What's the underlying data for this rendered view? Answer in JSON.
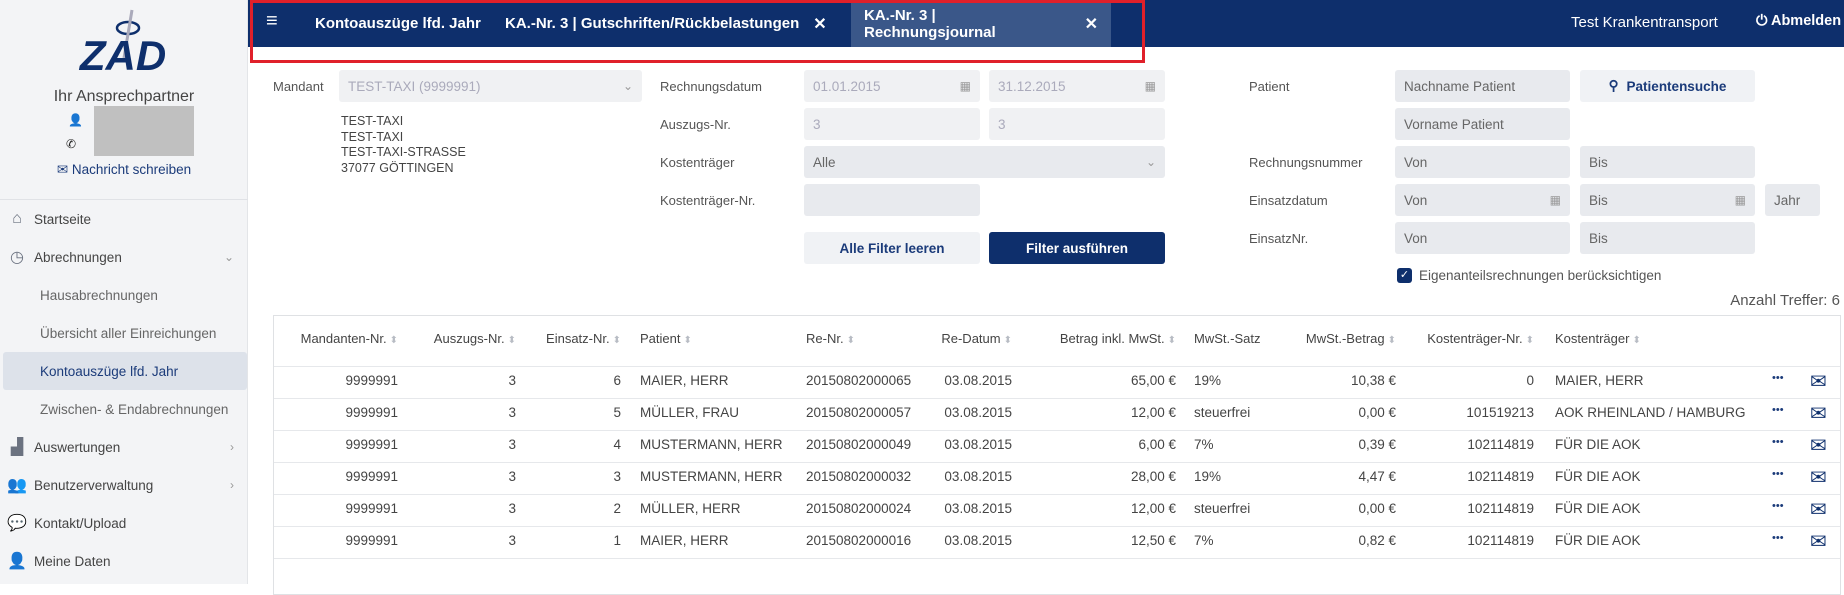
{
  "sidebar": {
    "logo_text": "ZAD",
    "contact_title": "Ihr Ansprechpartner",
    "message_link": "Nachricht schreiben",
    "items": [
      {
        "label": "Startseite",
        "icon": "home-icon"
      },
      {
        "label": "Abrechnungen",
        "icon": "clock-icon",
        "expanded": true
      },
      {
        "label": "Hausabrechnungen",
        "sub": true
      },
      {
        "label": "Übersicht aller Einreichungen",
        "sub": true
      },
      {
        "label": "Kontoauszüge lfd. Jahr",
        "sub": true,
        "active": true
      },
      {
        "label": "Zwischen- & Endabrechnungen",
        "sub": true
      },
      {
        "label": "Auswertungen",
        "icon": "bar-chart-icon"
      },
      {
        "label": "Benutzerverwaltung",
        "icon": "users-icon"
      },
      {
        "label": "Kontakt/Upload",
        "icon": "chat-icon"
      },
      {
        "label": "Meine Daten",
        "icon": "user-icon"
      }
    ]
  },
  "topbar": {
    "tabs": [
      {
        "label": "Kontoauszüge lfd. Jahr"
      },
      {
        "label": "KA.-Nr. 3 | Gutschriften/Rückbelastungen",
        "closable": true
      },
      {
        "label": "KA.-Nr. 3 | Rechnungsjournal",
        "closable": true,
        "active": true
      }
    ],
    "close_glyph": "✕",
    "user": "Test Krankentransport",
    "logout": "Abmelden"
  },
  "filters": {
    "mandant_label": "Mandant",
    "mandant_value": "TEST-TAXI (9999991)",
    "address": [
      "TEST-TAXI",
      "TEST-TAXI",
      "TEST-TAXI-STRASSE",
      "37077 GÖTTINGEN"
    ],
    "rechnungsdatum_label": "Rechnungsdatum",
    "rechnungsdatum_from": "01.01.2015",
    "rechnungsdatum_to": "31.12.2015",
    "auszug_label": "Auszugs-Nr.",
    "auszug_from": "3",
    "auszug_to": "3",
    "kostentraeger_label": "Kostenträger",
    "kostentraeger_value": "Alle",
    "kostentraeger_nr_label": "Kostenträger-Nr.",
    "kostentraeger_nr_value": "",
    "clear_button": "Alle Filter leeren",
    "run_button": "Filter ausführen",
    "patient_label": "Patient",
    "nachname_placeholder": "Nachname Patient",
    "vorname_placeholder": "Vorname Patient",
    "patient_search": "Patientensuche",
    "rechnungsnummer_label": "Rechnungsnummer",
    "einsatzdatum_label": "Einsatzdatum",
    "einsatznr_label": "EinsatzNr.",
    "von": "Von",
    "bis": "Bis",
    "jahr": "Jahr",
    "eigenanteil_label": "Eigenanteilsrechnungen berücksichtigen",
    "eigenanteil_checked": true,
    "hits": "Anzahl Treffer: 6"
  },
  "table": {
    "columns": [
      "Mandanten-Nr.",
      "Auszugs-Nr.",
      "Einsatz-Nr.",
      "Patient",
      "Re-Nr.",
      "Re-Datum",
      "Betrag inkl. MwSt.",
      "MwSt.-Satz",
      "MwSt.-Betrag",
      "Kostenträger-Nr.",
      "Kostenträger"
    ],
    "sortable": [
      true,
      true,
      true,
      true,
      true,
      true,
      true,
      false,
      true,
      true,
      true
    ],
    "rows": [
      [
        "9999991",
        "3",
        "6",
        "MAIER, HERR",
        "20150802000065",
        "03.08.2015",
        "65,00 €",
        "19%",
        "10,38 €",
        "0",
        "MAIER, HERR"
      ],
      [
        "9999991",
        "3",
        "5",
        "MÜLLER, FRAU",
        "20150802000057",
        "03.08.2015",
        "12,00 €",
        "steuerfrei",
        "0,00 €",
        "101519213",
        "AOK RHEINLAND / HAMBURG"
      ],
      [
        "9999991",
        "3",
        "4",
        "MUSTERMANN, HERR",
        "20150802000049",
        "03.08.2015",
        "6,00 €",
        "7%",
        "0,39 €",
        "102114819",
        "FÜR DIE AOK"
      ],
      [
        "9999991",
        "3",
        "3",
        "MUSTERMANN, HERR",
        "20150802000032",
        "03.08.2015",
        "28,00 €",
        "19%",
        "4,47 €",
        "102114819",
        "FÜR DIE AOK"
      ],
      [
        "9999991",
        "3",
        "2",
        "MÜLLER, HERR",
        "20150802000024",
        "03.08.2015",
        "12,00 €",
        "steuerfrei",
        "0,00 €",
        "102114819",
        "FÜR DIE AOK"
      ],
      [
        "9999991",
        "3",
        "1",
        "MAIER, HERR",
        "20150802000016",
        "03.08.2015",
        "12,50 €",
        "7%",
        "0,82 €",
        "102114819",
        "FÜR DIE AOK"
      ]
    ],
    "row_actions": {
      "more": "•••",
      "mail_icon": "envelope-icon"
    }
  },
  "colors": {
    "navy": "#0e2f6c",
    "active_tab": "#3a5789",
    "highlight": "#e0202a"
  }
}
